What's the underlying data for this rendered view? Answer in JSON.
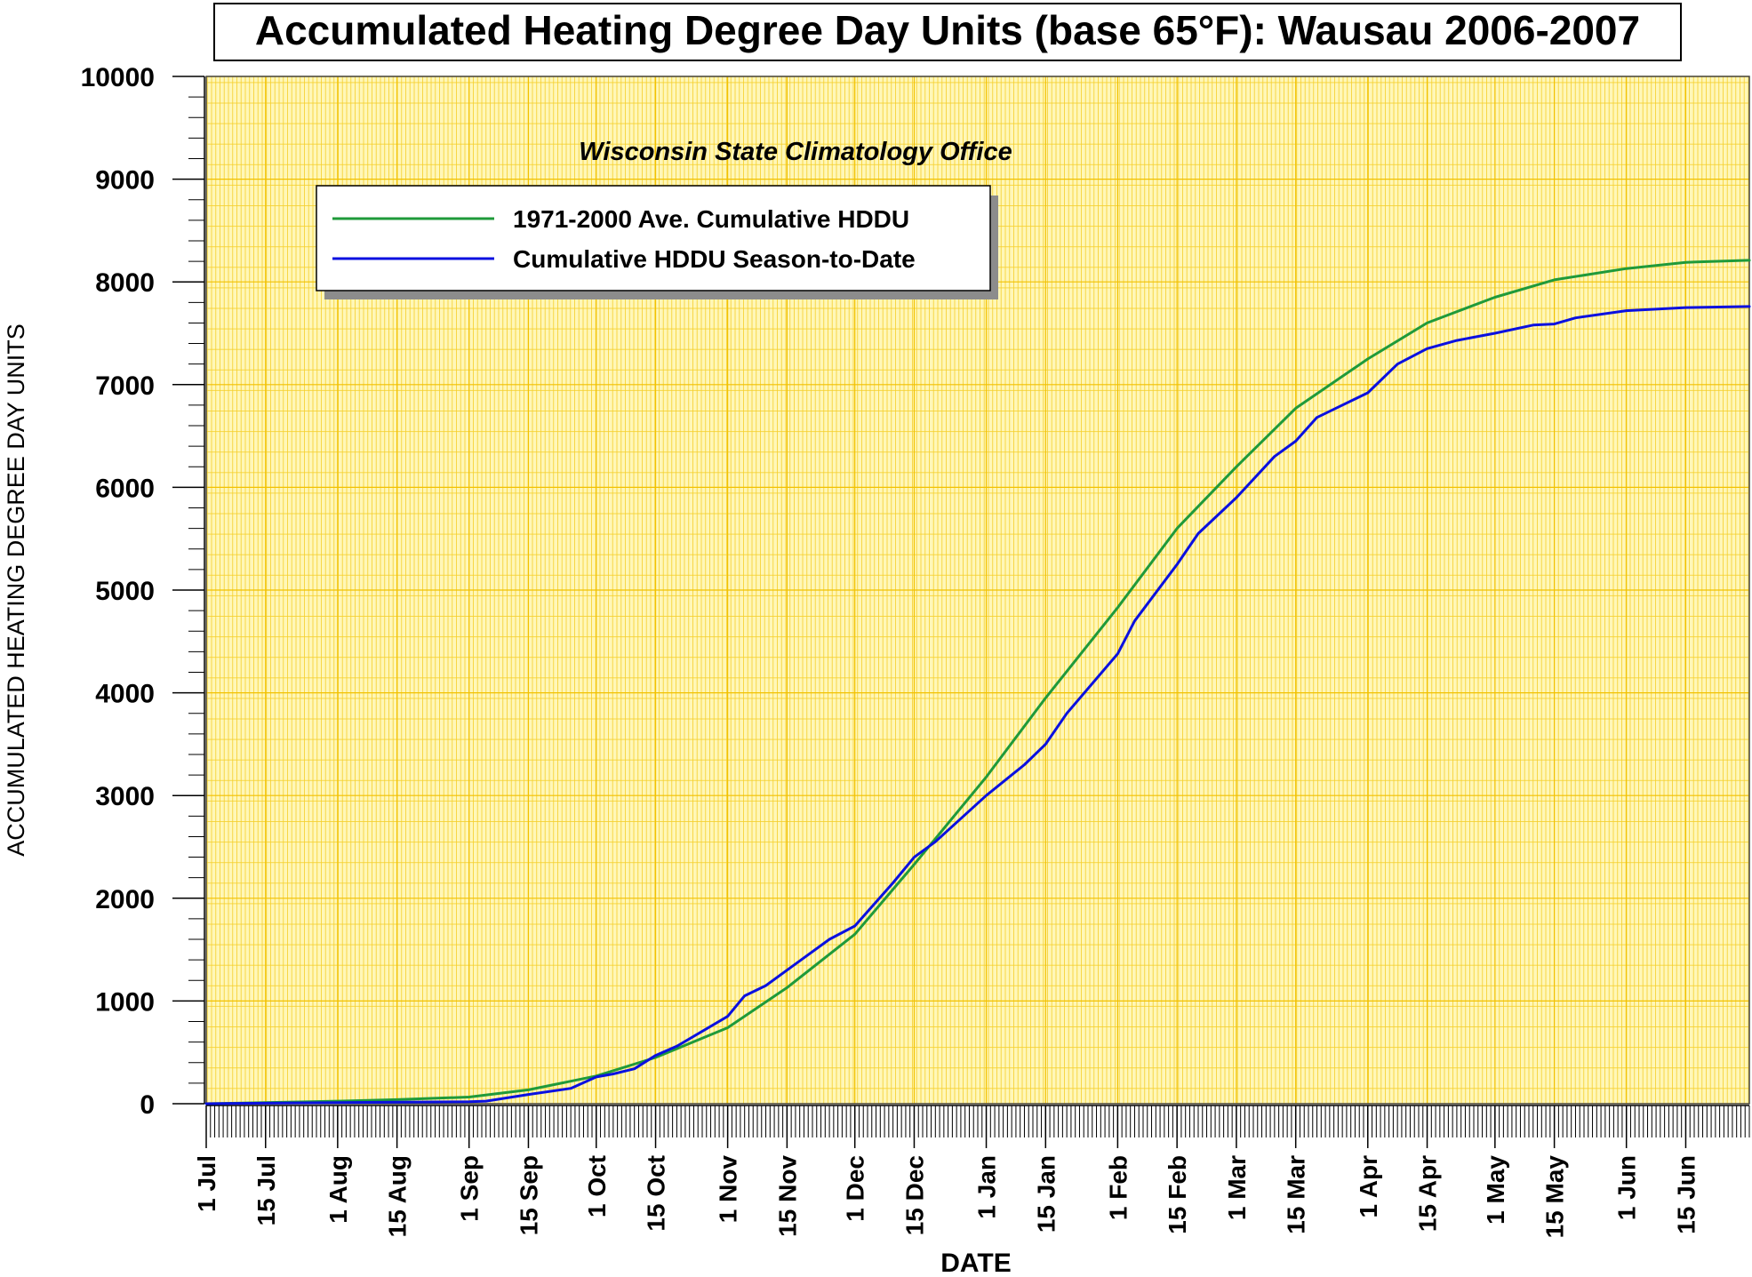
{
  "chart_data": {
    "type": "line",
    "title": "Accumulated Heating Degree Day Units (base 65°F): Wausau 2006-2007",
    "subtitle": "Wisconsin State Climatology Office",
    "xlabel": "DATE",
    "ylabel": "ACCUMULATED HEATING DEGREE DAY UNITS",
    "ylim": [
      0,
      10000
    ],
    "xlim": [
      "2006-07-01",
      "2007-06-30"
    ],
    "yticks": [
      0,
      1000,
      2000,
      3000,
      4000,
      5000,
      6000,
      7000,
      8000,
      9000,
      10000
    ],
    "xticks": [
      {
        "date": "2006-07-01",
        "label": "1 Jul"
      },
      {
        "date": "2006-07-15",
        "label": "15 Jul"
      },
      {
        "date": "2006-08-01",
        "label": "1 Aug"
      },
      {
        "date": "2006-08-15",
        "label": "15 Aug"
      },
      {
        "date": "2006-09-01",
        "label": "1 Sep"
      },
      {
        "date": "2006-09-15",
        "label": "15 Sep"
      },
      {
        "date": "2006-10-01",
        "label": "1 Oct"
      },
      {
        "date": "2006-10-15",
        "label": "15 Oct"
      },
      {
        "date": "2006-11-01",
        "label": "1 Nov"
      },
      {
        "date": "2006-11-15",
        "label": "15 Nov"
      },
      {
        "date": "2006-12-01",
        "label": "1 Dec"
      },
      {
        "date": "2006-12-15",
        "label": "15 Dec"
      },
      {
        "date": "2007-01-01",
        "label": "1 Jan"
      },
      {
        "date": "2007-01-15",
        "label": "15 Jan"
      },
      {
        "date": "2007-02-01",
        "label": "1 Feb"
      },
      {
        "date": "2007-02-15",
        "label": "15 Feb"
      },
      {
        "date": "2007-03-01",
        "label": "1 Mar"
      },
      {
        "date": "2007-03-15",
        "label": "15 Mar"
      },
      {
        "date": "2007-04-01",
        "label": "1 Apr"
      },
      {
        "date": "2007-04-15",
        "label": "15 Apr"
      },
      {
        "date": "2007-05-01",
        "label": "1 May"
      },
      {
        "date": "2007-05-15",
        "label": "15 May"
      },
      {
        "date": "2007-06-01",
        "label": "1 Jun"
      },
      {
        "date": "2007-06-15",
        "label": "15 Jun"
      }
    ],
    "grid": true,
    "legend_position": "top-left",
    "colors": {
      "plot_background": "#fff7b8",
      "grid_line": "#f2c100",
      "average_series": "#1f9a3a",
      "season_series": "#0a10e0"
    },
    "series": [
      {
        "name": "1971-2000 Ave. Cumulative HDDU",
        "color": "#1f9a3a",
        "points": [
          [
            "2006-07-01",
            0
          ],
          [
            "2006-07-15",
            10
          ],
          [
            "2006-08-01",
            25
          ],
          [
            "2006-08-15",
            40
          ],
          [
            "2006-09-01",
            65
          ],
          [
            "2006-09-15",
            135
          ],
          [
            "2006-10-01",
            270
          ],
          [
            "2006-10-15",
            450
          ],
          [
            "2006-11-01",
            740
          ],
          [
            "2006-11-15",
            1130
          ],
          [
            "2006-12-01",
            1650
          ],
          [
            "2006-12-15",
            2330
          ],
          [
            "2007-01-01",
            3180
          ],
          [
            "2007-01-15",
            3950
          ],
          [
            "2007-02-01",
            4830
          ],
          [
            "2007-02-15",
            5600
          ],
          [
            "2007-03-01",
            6200
          ],
          [
            "2007-03-15",
            6770
          ],
          [
            "2007-04-01",
            7250
          ],
          [
            "2007-04-15",
            7600
          ],
          [
            "2007-05-01",
            7850
          ],
          [
            "2007-05-15",
            8020
          ],
          [
            "2007-06-01",
            8130
          ],
          [
            "2007-06-15",
            8190
          ],
          [
            "2007-06-30",
            8210
          ]
        ]
      },
      {
        "name": "Cumulative HDDU Season-to-Date",
        "color": "#0a10e0",
        "points": [
          [
            "2006-07-01",
            0
          ],
          [
            "2006-07-15",
            5
          ],
          [
            "2006-08-01",
            10
          ],
          [
            "2006-08-15",
            15
          ],
          [
            "2006-09-01",
            20
          ],
          [
            "2006-09-05",
            25
          ],
          [
            "2006-09-15",
            90
          ],
          [
            "2006-09-25",
            150
          ],
          [
            "2006-10-01",
            260
          ],
          [
            "2006-10-05",
            290
          ],
          [
            "2006-10-10",
            340
          ],
          [
            "2006-10-15",
            470
          ],
          [
            "2006-10-20",
            560
          ],
          [
            "2006-11-01",
            850
          ],
          [
            "2006-11-05",
            1050
          ],
          [
            "2006-11-10",
            1150
          ],
          [
            "2006-11-15",
            1300
          ],
          [
            "2006-11-25",
            1600
          ],
          [
            "2006-12-01",
            1730
          ],
          [
            "2006-12-10",
            2150
          ],
          [
            "2006-12-15",
            2400
          ],
          [
            "2006-12-20",
            2550
          ],
          [
            "2007-01-01",
            3000
          ],
          [
            "2007-01-10",
            3300
          ],
          [
            "2007-01-15",
            3500
          ],
          [
            "2007-01-20",
            3800
          ],
          [
            "2007-02-01",
            4380
          ],
          [
            "2007-02-05",
            4700
          ],
          [
            "2007-02-15",
            5250
          ],
          [
            "2007-02-20",
            5550
          ],
          [
            "2007-03-01",
            5900
          ],
          [
            "2007-03-10",
            6300
          ],
          [
            "2007-03-15",
            6450
          ],
          [
            "2007-03-20",
            6680
          ],
          [
            "2007-03-25",
            6780
          ],
          [
            "2007-04-01",
            6920
          ],
          [
            "2007-04-08",
            7200
          ],
          [
            "2007-04-15",
            7350
          ],
          [
            "2007-04-22",
            7430
          ],
          [
            "2007-05-01",
            7500
          ],
          [
            "2007-05-10",
            7580
          ],
          [
            "2007-05-15",
            7590
          ],
          [
            "2007-05-20",
            7650
          ],
          [
            "2007-06-01",
            7720
          ],
          [
            "2007-06-15",
            7750
          ],
          [
            "2007-06-30",
            7760
          ]
        ]
      }
    ]
  }
}
